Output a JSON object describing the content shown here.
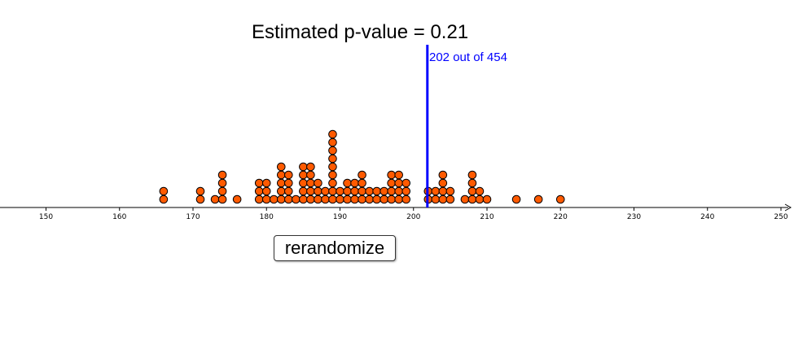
{
  "title": "Estimated p-value = 0.21",
  "reference": {
    "value": 202,
    "label": "202 out of 454",
    "color": "#0000ff"
  },
  "button": {
    "label": "rerandomize"
  },
  "chart_data": {
    "type": "scatter",
    "subtype": "dot-plot",
    "title": "Estimated p-value = 0.21",
    "xlabel": "",
    "ylabel": "",
    "xlim": [
      144,
      251
    ],
    "x_ticks": [
      150,
      160,
      170,
      180,
      190,
      200,
      210,
      220,
      230,
      240,
      250
    ],
    "grid": false,
    "dot_color": "#ff5a00",
    "dot_outline": "#000000",
    "stacks": [
      {
        "x": 166,
        "count": 2
      },
      {
        "x": 171,
        "count": 2
      },
      {
        "x": 173,
        "count": 1
      },
      {
        "x": 174,
        "count": 4
      },
      {
        "x": 176,
        "count": 1
      },
      {
        "x": 179,
        "count": 3
      },
      {
        "x": 180,
        "count": 3
      },
      {
        "x": 181,
        "count": 1
      },
      {
        "x": 182,
        "count": 5
      },
      {
        "x": 183,
        "count": 4
      },
      {
        "x": 184,
        "count": 1
      },
      {
        "x": 185,
        "count": 5
      },
      {
        "x": 186,
        "count": 5
      },
      {
        "x": 187,
        "count": 3
      },
      {
        "x": 188,
        "count": 2
      },
      {
        "x": 189,
        "count": 9
      },
      {
        "x": 190,
        "count": 2
      },
      {
        "x": 191,
        "count": 3
      },
      {
        "x": 192,
        "count": 3
      },
      {
        "x": 193,
        "count": 4
      },
      {
        "x": 194,
        "count": 2
      },
      {
        "x": 195,
        "count": 2
      },
      {
        "x": 196,
        "count": 2
      },
      {
        "x": 197,
        "count": 4
      },
      {
        "x": 198,
        "count": 4
      },
      {
        "x": 199,
        "count": 3
      },
      {
        "x": 202,
        "count": 2
      },
      {
        "x": 203,
        "count": 2
      },
      {
        "x": 204,
        "count": 4
      },
      {
        "x": 205,
        "count": 2
      },
      {
        "x": 207,
        "count": 1
      },
      {
        "x": 208,
        "count": 4
      },
      {
        "x": 209,
        "count": 2
      },
      {
        "x": 210,
        "count": 1
      },
      {
        "x": 214,
        "count": 1
      },
      {
        "x": 217,
        "count": 1
      },
      {
        "x": 220,
        "count": 1
      }
    ]
  }
}
